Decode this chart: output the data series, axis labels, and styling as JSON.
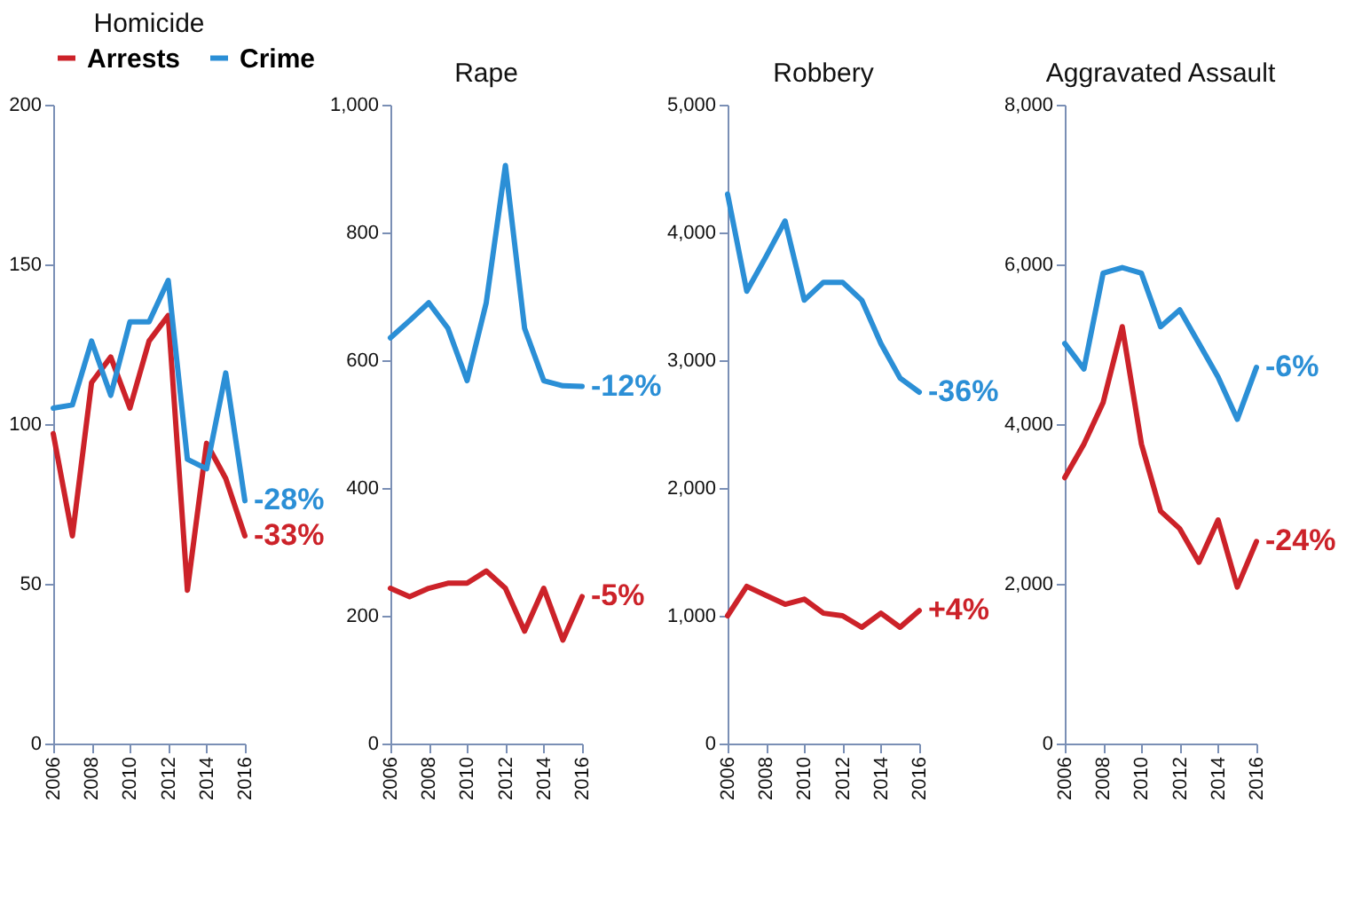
{
  "chart_data": [
    {
      "type": "line",
      "title": "Homicide",
      "x": [
        2006,
        2007,
        2008,
        2009,
        2010,
        2011,
        2012,
        2013,
        2014,
        2015,
        2016
      ],
      "xlim": [
        2006,
        2016
      ],
      "xticks": [
        2006,
        2008,
        2010,
        2012,
        2014,
        2016
      ],
      "ylim": [
        0,
        200
      ],
      "yticks": [
        0,
        50,
        100,
        150,
        200
      ],
      "legend": "top",
      "series": [
        {
          "name": "Arrests",
          "color": "#cc2229",
          "values": [
            97,
            65,
            113,
            121,
            105,
            126,
            134,
            48,
            94,
            83,
            65
          ]
        },
        {
          "name": "Crime",
          "color": "#2b8fd6",
          "values": [
            105,
            106,
            126,
            109,
            132,
            132,
            145,
            89,
            86,
            116,
            76
          ]
        }
      ],
      "annotations": [
        "-33%",
        "-28%"
      ]
    },
    {
      "type": "line",
      "title": "Rape",
      "x": [
        2006,
        2007,
        2008,
        2009,
        2010,
        2011,
        2012,
        2013,
        2014,
        2015,
        2016
      ],
      "xlim": [
        2006,
        2016
      ],
      "xticks": [
        2006,
        2008,
        2010,
        2012,
        2014,
        2016
      ],
      "ylim": [
        0,
        1000
      ],
      "yticks": [
        0,
        200,
        400,
        600,
        800,
        {
          "value": 1000,
          "label": "1,000"
        }
      ],
      "series": [
        {
          "color": "#cc2229",
          "values": [
            243,
            230,
            243,
            251,
            251,
            270,
            243,
            176,
            243,
            162,
            230
          ]
        },
        {
          "color": "#2b8fd6",
          "values": [
            635,
            662,
            690,
            650,
            568,
            690,
            905,
            650,
            568,
            560,
            559
          ]
        }
      ],
      "annotations": [
        "-5%",
        "-12%"
      ]
    },
    {
      "type": "line",
      "title": "Robbery",
      "x": [
        2006,
        2007,
        2008,
        2009,
        2010,
        2011,
        2012,
        2013,
        2014,
        2015,
        2016
      ],
      "xlim": [
        2006,
        2016
      ],
      "xticks": [
        2006,
        2008,
        2010,
        2012,
        2014,
        2016
      ],
      "ylim": [
        0,
        5000
      ],
      "yticks": [
        0,
        {
          "value": 1000,
          "label": "1,000"
        },
        {
          "value": 2000,
          "label": "2,000"
        },
        {
          "value": 3000,
          "label": "3,000"
        },
        {
          "value": 4000,
          "label": "4,000"
        },
        {
          "value": 5000,
          "label": "5,000"
        }
      ],
      "series": [
        {
          "color": "#cc2229",
          "values": [
            1000,
            1230,
            1160,
            1090,
            1130,
            1020,
            1000,
            910,
            1020,
            910,
            1040
          ]
        },
        {
          "color": "#2b8fd6",
          "values": [
            4300,
            3540,
            3810,
            4090,
            3470,
            3610,
            3610,
            3470,
            3130,
            2860,
            2750
          ]
        }
      ],
      "annotations": [
        "+4%",
        "-36%"
      ]
    },
    {
      "type": "line",
      "title": "Aggravated Assault",
      "x": [
        2006,
        2007,
        2008,
        2009,
        2010,
        2011,
        2012,
        2013,
        2014,
        2015,
        2016
      ],
      "xlim": [
        2006,
        2016
      ],
      "xticks": [
        2006,
        2008,
        2010,
        2012,
        2014,
        2016
      ],
      "ylim": [
        0,
        8000
      ],
      "yticks": [
        0,
        {
          "value": 2000,
          "label": "2,000"
        },
        {
          "value": 4000,
          "label": "4,000"
        },
        {
          "value": 6000,
          "label": "6,000"
        },
        {
          "value": 8000,
          "label": "8,000"
        }
      ],
      "series": [
        {
          "color": "#cc2229",
          "values": [
            3330,
            3750,
            4270,
            5220,
            3750,
            2910,
            2690,
            2270,
            2800,
            1960,
            2530
          ]
        },
        {
          "color": "#2b8fd6",
          "values": [
            5010,
            4690,
            5890,
            5960,
            5890,
            5220,
            5430,
            5010,
            4590,
            4060,
            4710
          ]
        }
      ],
      "annotations": [
        "-24%",
        "-6%"
      ]
    }
  ]
}
